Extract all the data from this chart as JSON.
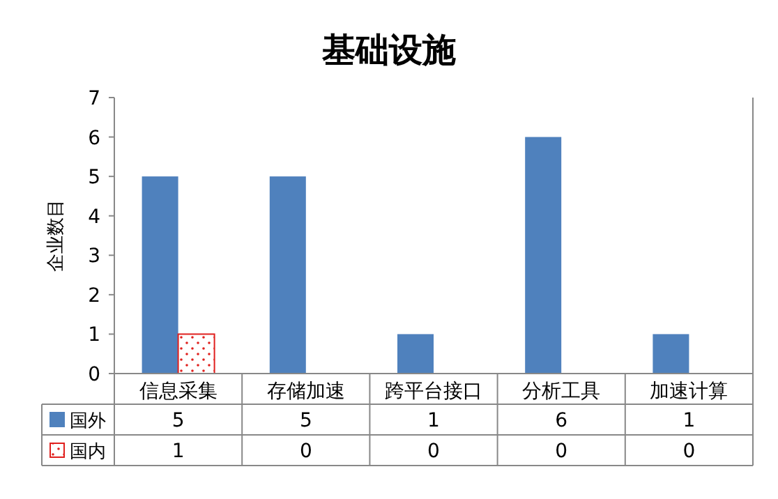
{
  "chart_data": {
    "type": "bar",
    "title": "基础设施",
    "ylabel": "企业数目",
    "categories": [
      "信息采集",
      "存储加速",
      "跨平台接口",
      "分析工具",
      "加速计算"
    ],
    "series": [
      {
        "name": "国外",
        "color": "#4f81bd",
        "values": [
          5,
          5,
          1,
          6,
          1
        ]
      },
      {
        "name": "国内",
        "color": "#e0201e",
        "values": [
          1,
          0,
          0,
          0,
          0
        ]
      }
    ],
    "ylim": [
      0,
      7
    ],
    "yticks": [
      0,
      1,
      2,
      3,
      4,
      5,
      6,
      7
    ],
    "data_labels": true,
    "legend": "bottom",
    "grid": false
  }
}
